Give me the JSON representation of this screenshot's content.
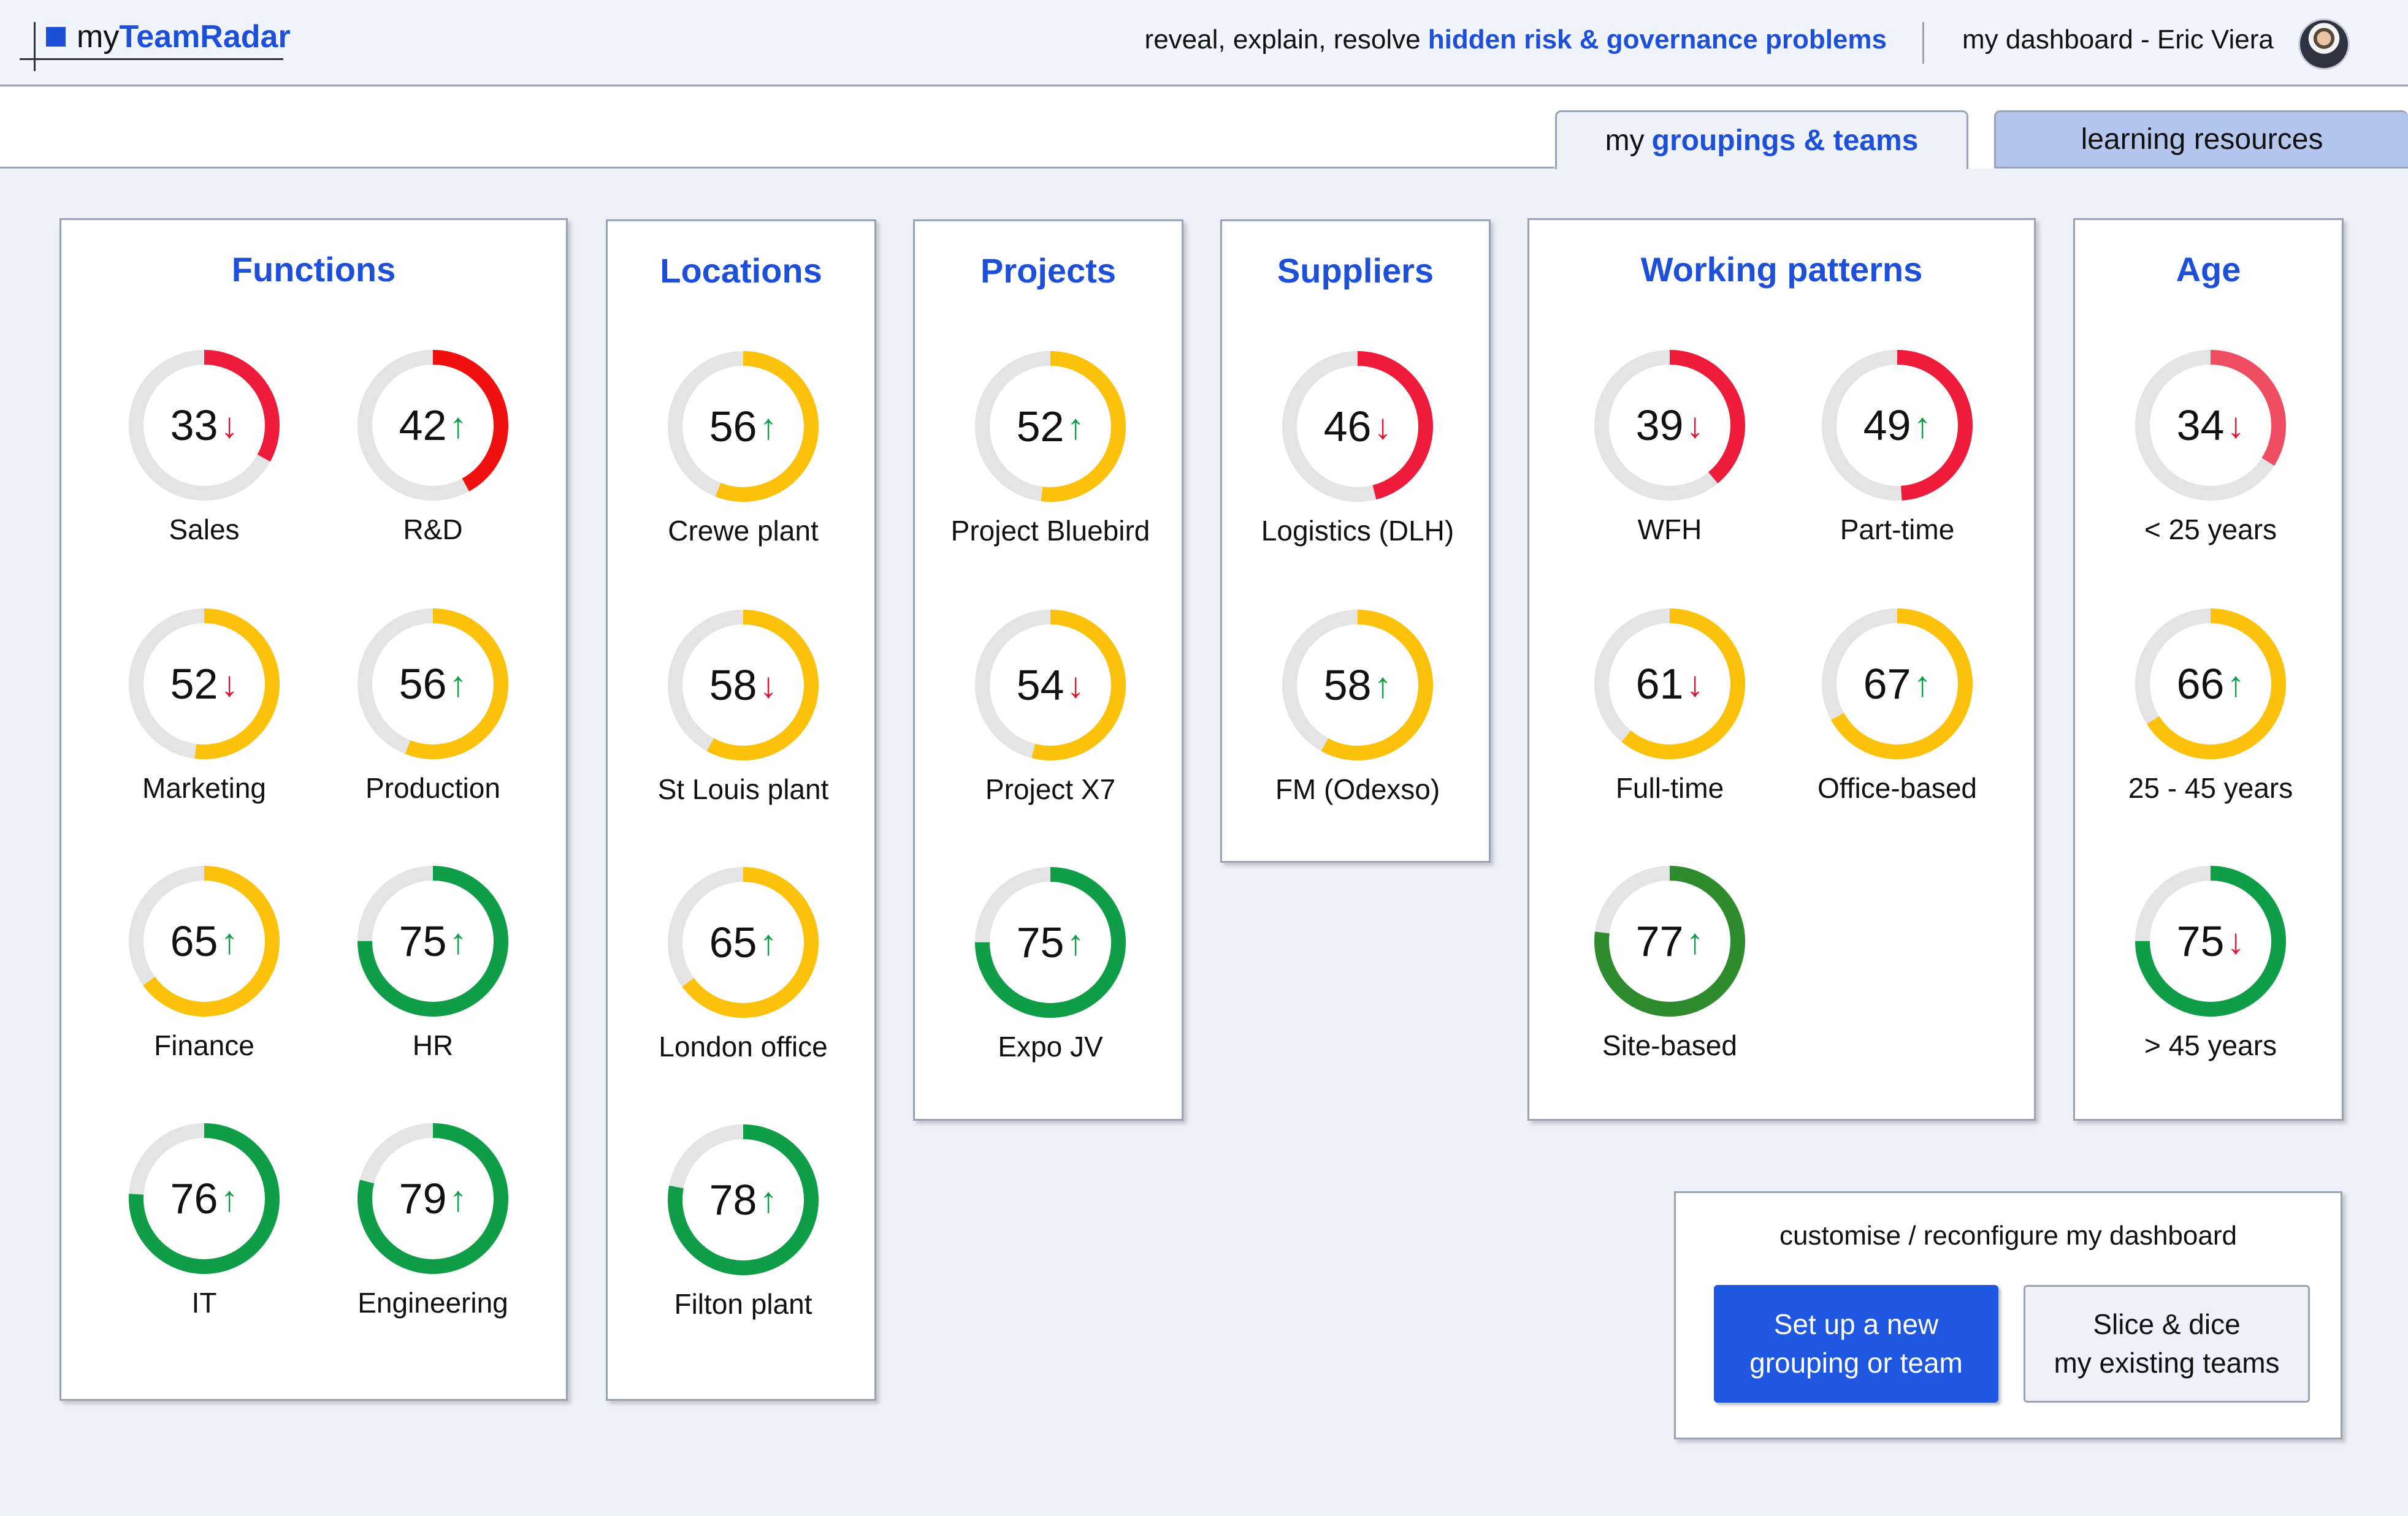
{
  "header": {
    "logo_prefix": "my",
    "logo_brand": "TeamRadar",
    "tagline_prefix": "reveal, explain, resolve",
    "tagline_highlight": "hidden risk & governance problems",
    "user_label": "my dashboard - Eric Viera"
  },
  "tabs": {
    "groupings_prefix": "my",
    "groupings_highlight": "groupings & teams",
    "learning": "learning resources"
  },
  "colors": {
    "brand": "#1e4fd8",
    "red": "#ee1c3a",
    "red_bright": "#f01010",
    "red_light": "#ee4d62",
    "yellow": "#fcc10a",
    "green": "#0f9d48",
    "green_dark": "#2e8b2e",
    "track": "#e4e4e4",
    "arrow_up": "#0f9d48",
    "arrow_down": "#e0152f"
  },
  "panels": [
    {
      "title": "Functions",
      "gauges": [
        {
          "label": "Sales",
          "value": 33,
          "trend": "down",
          "color": "red"
        },
        {
          "label": "R&D",
          "value": 42,
          "trend": "up",
          "color": "red_bright"
        },
        {
          "label": "Marketing",
          "value": 52,
          "trend": "down",
          "color": "yellow"
        },
        {
          "label": "Production",
          "value": 56,
          "trend": "up",
          "color": "yellow"
        },
        {
          "label": "Finance",
          "value": 65,
          "trend": "up",
          "color": "yellow"
        },
        {
          "label": "HR",
          "value": 75,
          "trend": "up",
          "color": "green"
        },
        {
          "label": "IT",
          "value": 76,
          "trend": "up",
          "color": "green"
        },
        {
          "label": "Engineering",
          "value": 79,
          "trend": "up",
          "color": "green"
        }
      ]
    },
    {
      "title": "Locations",
      "gauges": [
        {
          "label": "Crewe plant",
          "value": 56,
          "trend": "up",
          "color": "yellow"
        },
        {
          "label": "St Louis plant",
          "value": 58,
          "trend": "down",
          "color": "yellow"
        },
        {
          "label": "London office",
          "value": 65,
          "trend": "up",
          "color": "yellow"
        },
        {
          "label": "Filton plant",
          "value": 78,
          "trend": "up",
          "color": "green"
        }
      ]
    },
    {
      "title": "Projects",
      "gauges": [
        {
          "label": "Project Bluebird",
          "value": 52,
          "trend": "up",
          "color": "yellow"
        },
        {
          "label": "Project X7",
          "value": 54,
          "trend": "down",
          "color": "yellow"
        },
        {
          "label": "Expo JV",
          "value": 75,
          "trend": "up",
          "color": "green"
        }
      ]
    },
    {
      "title": "Suppliers",
      "gauges": [
        {
          "label": "Logistics (DLH)",
          "value": 46,
          "trend": "down",
          "color": "red"
        },
        {
          "label": "FM (Odexso)",
          "value": 58,
          "trend": "up",
          "color": "yellow"
        }
      ]
    },
    {
      "title": "Working patterns",
      "gauges": [
        {
          "label": "WFH",
          "value": 39,
          "trend": "down",
          "color": "red"
        },
        {
          "label": "Part-time",
          "value": 49,
          "trend": "up",
          "color": "red"
        },
        {
          "label": "Full-time",
          "value": 61,
          "trend": "down",
          "color": "yellow"
        },
        {
          "label": "Office-based",
          "value": 67,
          "trend": "up",
          "color": "yellow"
        },
        {
          "label": "Site-based",
          "value": 77,
          "trend": "up",
          "color": "green_dark"
        }
      ]
    },
    {
      "title": "Age",
      "gauges": [
        {
          "label": "< 25 years",
          "value": 34,
          "trend": "down",
          "color": "red_light"
        },
        {
          "label": "25 - 45 years",
          "value": 66,
          "trend": "up",
          "color": "yellow"
        },
        {
          "label": "> 45 years",
          "value": 75,
          "trend": "down",
          "color": "green"
        }
      ]
    }
  ],
  "customise": {
    "title": "customise / reconfigure my dashboard",
    "setup_line1": "Set up a new",
    "setup_line2": "grouping or team",
    "slice_line1": "Slice & dice",
    "slice_line2": "my existing teams"
  }
}
